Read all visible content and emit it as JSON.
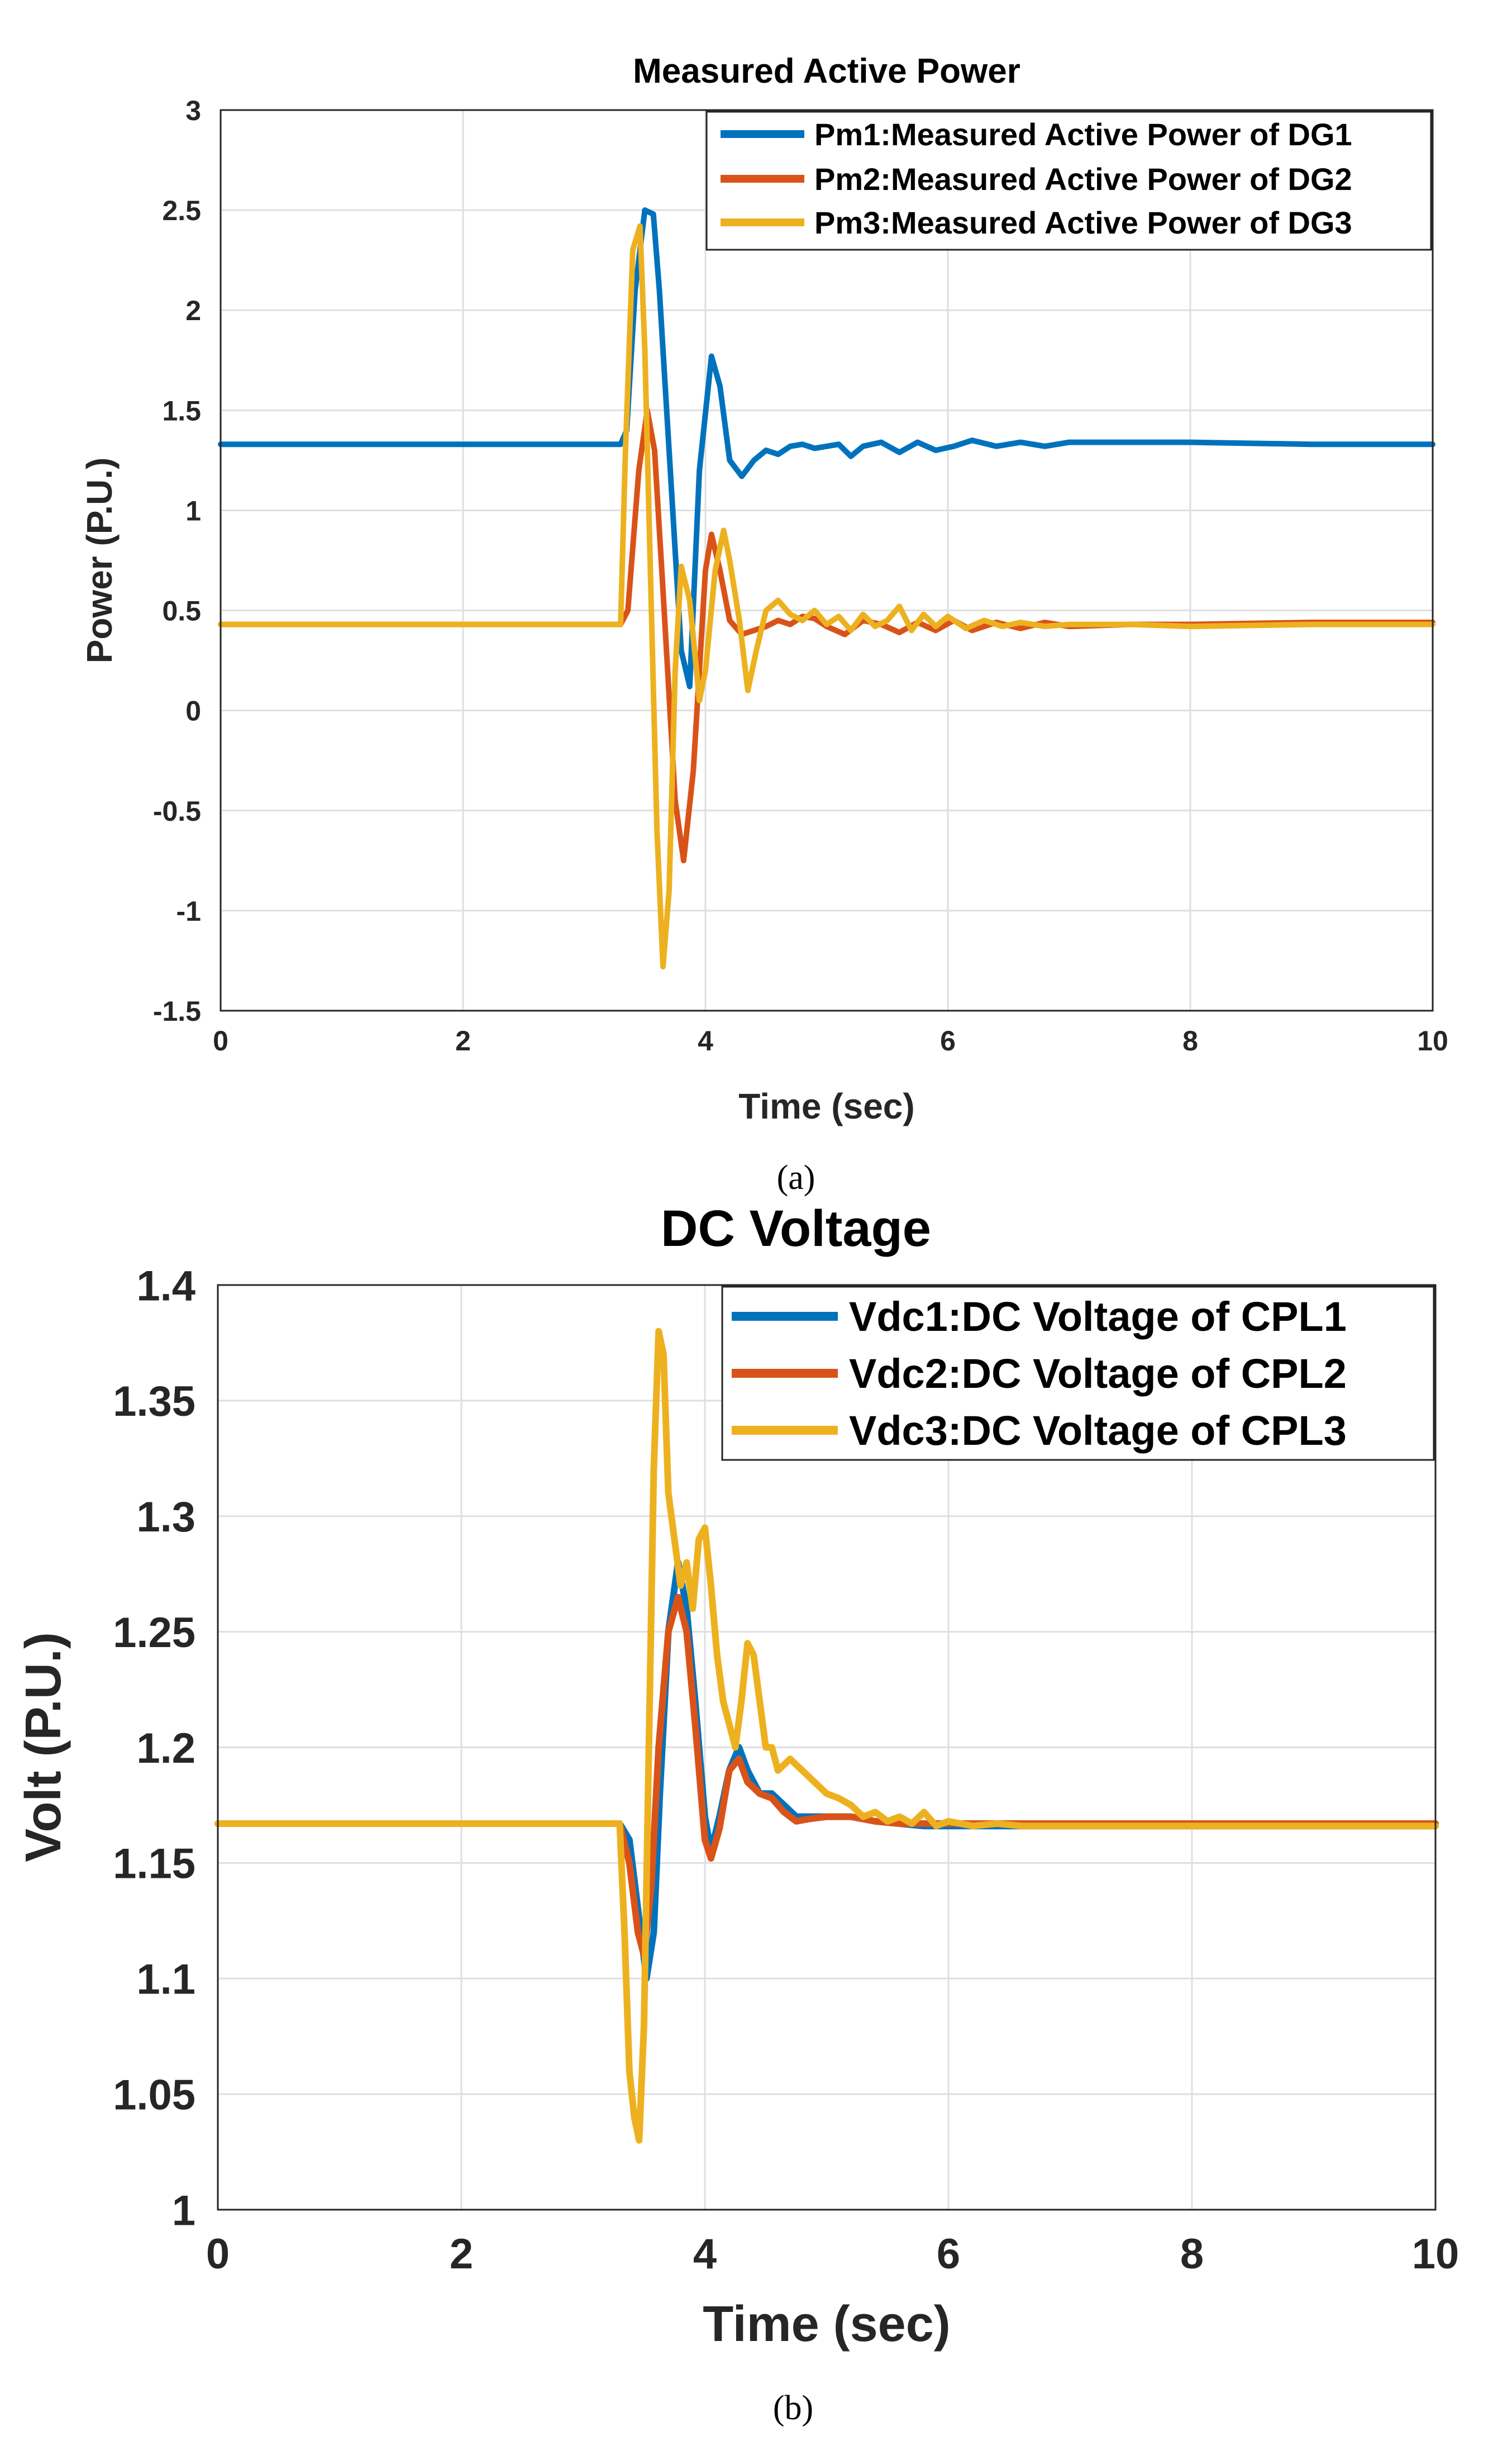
{
  "chart_data": [
    {
      "type": "line",
      "title": "Measured Active Power",
      "xlabel": "Time (sec)",
      "ylabel": "Power (P.U.)",
      "caption": "(a)",
      "xlim": [
        0,
        10
      ],
      "ylim": [
        -1.5,
        3
      ],
      "xticks": [
        0,
        2,
        4,
        6,
        8,
        10
      ],
      "xtick_labels": [
        "0",
        "2",
        "4",
        "6",
        "8",
        "10"
      ],
      "yticks": [
        -1.5,
        -1,
        -0.5,
        0,
        0.5,
        1,
        1.5,
        2,
        2.5,
        3
      ],
      "ytick_labels": [
        "-1.5",
        "-1",
        "-0.5",
        "0",
        "0.5",
        "1",
        "1.5",
        "2",
        "2.5",
        "3"
      ],
      "grid": true,
      "legend_position": "top-right",
      "series": [
        {
          "name": "Pm1:Measured Active Power of DG1",
          "color": "#0072BD",
          "x": [
            0,
            3.3,
            3.35,
            3.42,
            3.5,
            3.57,
            3.62,
            3.7,
            3.8,
            3.87,
            3.95,
            4.05,
            4.12,
            4.2,
            4.3,
            4.4,
            4.5,
            4.6,
            4.7,
            4.8,
            4.9,
            5.0,
            5.1,
            5.2,
            5.3,
            5.45,
            5.6,
            5.75,
            5.9,
            6.05,
            6.2,
            6.4,
            6.6,
            6.8,
            7.0,
            7.5,
            8.0,
            9.0,
            10.0
          ],
          "y": [
            1.33,
            1.33,
            1.4,
            2.1,
            2.5,
            2.48,
            2.1,
            1.3,
            0.3,
            0.12,
            1.2,
            1.77,
            1.62,
            1.25,
            1.17,
            1.25,
            1.3,
            1.28,
            1.32,
            1.33,
            1.31,
            1.32,
            1.33,
            1.27,
            1.32,
            1.34,
            1.29,
            1.34,
            1.3,
            1.32,
            1.35,
            1.32,
            1.34,
            1.32,
            1.34,
            1.34,
            1.34,
            1.33,
            1.33
          ]
        },
        {
          "name": "Pm2:Measured Active Power of DG2",
          "color": "#D95319",
          "x": [
            0,
            3.3,
            3.36,
            3.45,
            3.52,
            3.58,
            3.65,
            3.75,
            3.82,
            3.9,
            4.0,
            4.05,
            4.12,
            4.2,
            4.3,
            4.4,
            4.5,
            4.6,
            4.7,
            4.8,
            4.9,
            5.0,
            5.15,
            5.3,
            5.45,
            5.6,
            5.75,
            5.9,
            6.05,
            6.2,
            6.4,
            6.6,
            6.8,
            7.0,
            7.5,
            8.0,
            9.0,
            10.0
          ],
          "y": [
            0.43,
            0.43,
            0.5,
            1.2,
            1.5,
            1.3,
            0.6,
            -0.45,
            -0.75,
            -0.3,
            0.7,
            0.88,
            0.7,
            0.45,
            0.38,
            0.4,
            0.42,
            0.45,
            0.43,
            0.47,
            0.46,
            0.42,
            0.38,
            0.45,
            0.43,
            0.39,
            0.44,
            0.4,
            0.45,
            0.4,
            0.44,
            0.41,
            0.44,
            0.42,
            0.43,
            0.43,
            0.44,
            0.44
          ]
        },
        {
          "name": "Pm3:Measured Active Power of DG3",
          "color": "#EDB120",
          "x": [
            0,
            3.3,
            3.34,
            3.4,
            3.46,
            3.5,
            3.55,
            3.6,
            3.65,
            3.7,
            3.75,
            3.8,
            3.87,
            3.95,
            4.0,
            4.08,
            4.15,
            4.2,
            4.28,
            4.35,
            4.42,
            4.5,
            4.6,
            4.7,
            4.8,
            4.9,
            5.0,
            5.1,
            5.2,
            5.3,
            5.4,
            5.5,
            5.6,
            5.7,
            5.8,
            5.9,
            6.0,
            6.15,
            6.3,
            6.45,
            6.6,
            6.8,
            7.0,
            7.5,
            8.0,
            9.0,
            10.0
          ],
          "y": [
            0.43,
            0.43,
            1.3,
            2.3,
            2.42,
            1.8,
            0.6,
            -0.6,
            -1.28,
            -0.9,
            0.2,
            0.72,
            0.55,
            0.05,
            0.2,
            0.7,
            0.9,
            0.75,
            0.45,
            0.1,
            0.3,
            0.5,
            0.55,
            0.48,
            0.45,
            0.5,
            0.43,
            0.47,
            0.4,
            0.48,
            0.42,
            0.45,
            0.52,
            0.4,
            0.48,
            0.42,
            0.47,
            0.41,
            0.45,
            0.42,
            0.44,
            0.42,
            0.43,
            0.43,
            0.42,
            0.43,
            0.43
          ]
        }
      ]
    },
    {
      "type": "line",
      "title": "DC Voltage",
      "xlabel": "Time (sec)",
      "ylabel": "Volt (P.U.)",
      "caption": "(b)",
      "xlim": [
        0,
        10
      ],
      "ylim": [
        1,
        1.4
      ],
      "xticks": [
        0,
        2,
        4,
        6,
        8,
        10
      ],
      "xtick_labels": [
        "0",
        "2",
        "4",
        "6",
        "8",
        "10"
      ],
      "yticks": [
        1,
        1.05,
        1.1,
        1.15,
        1.2,
        1.25,
        1.3,
        1.35,
        1.4
      ],
      "ytick_labels": [
        "1",
        "1.05",
        "1.1",
        "1.15",
        "1.2",
        "1.25",
        "1.3",
        "1.35",
        "1.4"
      ],
      "grid": true,
      "legend_position": "top-right",
      "series": [
        {
          "name": "Vdc1:DC Voltage of CPL1",
          "color": "#0072BD",
          "x": [
            0,
            3.3,
            3.38,
            3.45,
            3.52,
            3.58,
            3.63,
            3.7,
            3.78,
            3.85,
            3.92,
            4.0,
            4.05,
            4.12,
            4.2,
            4.28,
            4.35,
            4.45,
            4.55,
            4.65,
            4.75,
            4.85,
            5.0,
            5.2,
            5.4,
            5.6,
            5.8,
            6.0,
            6.5,
            7.0,
            8.0,
            10.0
          ],
          "y": [
            1.167,
            1.167,
            1.16,
            1.13,
            1.1,
            1.12,
            1.18,
            1.25,
            1.28,
            1.26,
            1.22,
            1.17,
            1.155,
            1.17,
            1.19,
            1.2,
            1.19,
            1.18,
            1.18,
            1.175,
            1.17,
            1.17,
            1.17,
            1.17,
            1.168,
            1.167,
            1.166,
            1.166,
            1.166,
            1.166,
            1.166,
            1.166
          ]
        },
        {
          "name": "Vdc2:DC Voltage of CPL2",
          "color": "#D95319",
          "x": [
            0,
            3.3,
            3.38,
            3.45,
            3.5,
            3.56,
            3.62,
            3.7,
            3.78,
            3.85,
            3.92,
            4.0,
            4.05,
            4.12,
            4.2,
            4.28,
            4.35,
            4.45,
            4.55,
            4.65,
            4.75,
            4.85,
            5.0,
            5.2,
            5.4,
            5.6,
            5.8,
            6.0,
            6.5,
            7.0,
            8.0,
            10.0
          ],
          "y": [
            1.167,
            1.167,
            1.15,
            1.12,
            1.11,
            1.14,
            1.2,
            1.25,
            1.265,
            1.25,
            1.21,
            1.16,
            1.152,
            1.165,
            1.19,
            1.195,
            1.185,
            1.18,
            1.178,
            1.172,
            1.168,
            1.169,
            1.17,
            1.17,
            1.168,
            1.167,
            1.167,
            1.167,
            1.167,
            1.167,
            1.167,
            1.167
          ]
        },
        {
          "name": "Vdc3:DC Voltage of CPL3",
          "color": "#EDB120",
          "x": [
            0,
            3.3,
            3.34,
            3.38,
            3.42,
            3.46,
            3.5,
            3.54,
            3.58,
            3.62,
            3.66,
            3.7,
            3.75,
            3.8,
            3.85,
            3.9,
            3.95,
            4.0,
            4.05,
            4.1,
            4.15,
            4.2,
            4.25,
            4.3,
            4.35,
            4.4,
            4.45,
            4.5,
            4.55,
            4.6,
            4.7,
            4.8,
            4.9,
            5.0,
            5.1,
            5.2,
            5.3,
            5.4,
            5.5,
            5.6,
            5.7,
            5.8,
            5.9,
            6.0,
            6.2,
            6.4,
            6.6,
            6.8,
            7.0,
            8.0,
            10.0
          ],
          "y": [
            1.167,
            1.167,
            1.12,
            1.06,
            1.04,
            1.03,
            1.08,
            1.2,
            1.32,
            1.38,
            1.37,
            1.31,
            1.29,
            1.27,
            1.28,
            1.26,
            1.29,
            1.295,
            1.27,
            1.24,
            1.22,
            1.21,
            1.2,
            1.22,
            1.245,
            1.24,
            1.22,
            1.2,
            1.2,
            1.19,
            1.195,
            1.19,
            1.185,
            1.18,
            1.178,
            1.175,
            1.17,
            1.172,
            1.168,
            1.17,
            1.167,
            1.172,
            1.166,
            1.168,
            1.166,
            1.167,
            1.166,
            1.166,
            1.166,
            1.166,
            1.166
          ]
        }
      ]
    }
  ]
}
